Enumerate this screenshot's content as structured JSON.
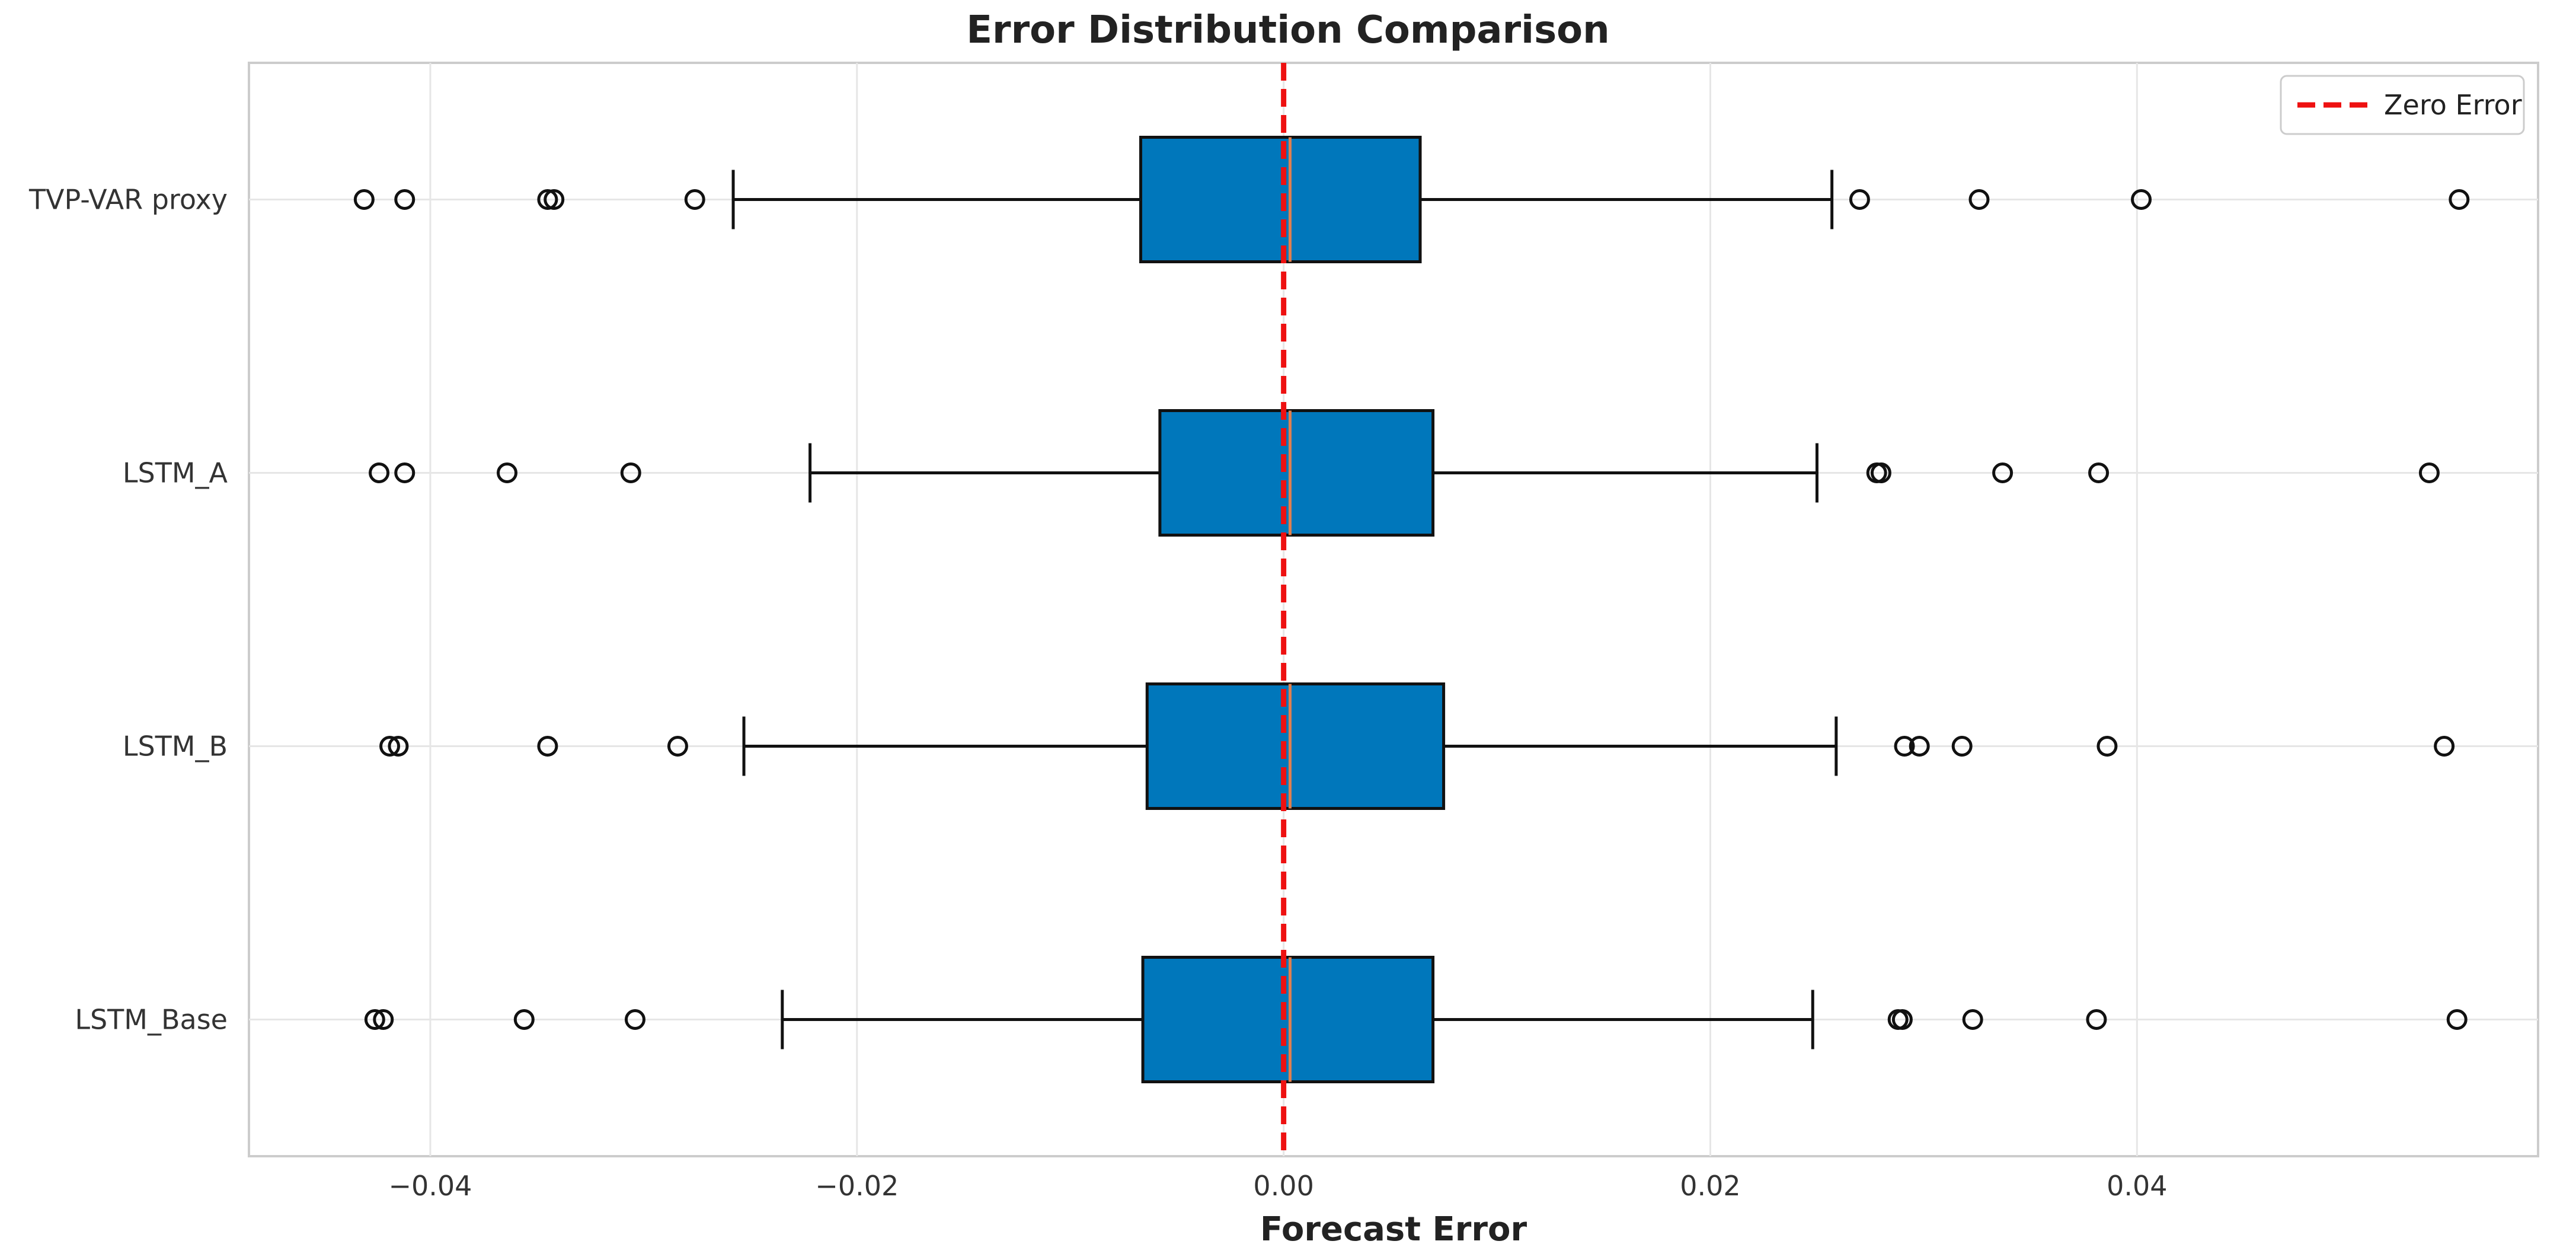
{
  "chart_data": {
    "type": "boxplot",
    "orientation": "horizontal",
    "title": "Error Distribution Comparison",
    "xlabel": "Forecast Error",
    "ylabel": "",
    "xlim": [
      -0.0485,
      0.0588
    ],
    "xticks": [
      -0.04,
      -0.02,
      0.0,
      0.02,
      0.04
    ],
    "xtick_labels": [
      "−0.04",
      "−0.02",
      "0.00",
      "0.02",
      "0.04"
    ],
    "grid": true,
    "categories": [
      "TVP-VAR proxy",
      "LSTM_A",
      "LSTM_B",
      "LSTM_Base"
    ],
    "boxes": [
      {
        "name": "TVP-VAR proxy",
        "whisker_low": -0.0258,
        "q1": -0.0067,
        "median": 0.0003,
        "q3": 0.0064,
        "whisker_high": 0.0257,
        "outliers": [
          -0.0431,
          -0.0412,
          -0.0345,
          -0.0342,
          -0.0276,
          0.027,
          0.0326,
          0.0402,
          0.0551
        ]
      },
      {
        "name": "LSTM_A",
        "whisker_low": -0.0222,
        "q1": -0.0058,
        "median": 0.0003,
        "q3": 0.007,
        "whisker_high": 0.025,
        "outliers": [
          -0.0424,
          -0.0412,
          -0.0364,
          -0.0306,
          0.0278,
          0.028,
          0.0337,
          0.0382,
          0.0537
        ]
      },
      {
        "name": "LSTM_B",
        "whisker_low": -0.0253,
        "q1": -0.0064,
        "median": 0.0003,
        "q3": 0.0075,
        "whisker_high": 0.0259,
        "outliers": [
          -0.0419,
          -0.0415,
          -0.0345,
          -0.0284,
          0.0291,
          0.0298,
          0.0318,
          0.0386,
          0.0544
        ]
      },
      {
        "name": "LSTM_Base",
        "whisker_low": -0.0235,
        "q1": -0.0066,
        "median": 0.0003,
        "q3": 0.007,
        "whisker_high": 0.0248,
        "outliers": [
          -0.0426,
          -0.0422,
          -0.0356,
          -0.0304,
          0.0288,
          0.029,
          0.0323,
          0.0381,
          0.055
        ]
      }
    ],
    "reference_line": {
      "x": 0.0,
      "label": "Zero Error",
      "style": "dashed",
      "color": "#ee1111"
    },
    "legend": {
      "position": "top-right",
      "entries": [
        "Zero Error"
      ]
    },
    "colors": {
      "box_fill": "#0077bb",
      "box_edge": "#111111",
      "median": "#e08050",
      "grid": "#e6e6e6",
      "frame": "#cccccc"
    }
  }
}
